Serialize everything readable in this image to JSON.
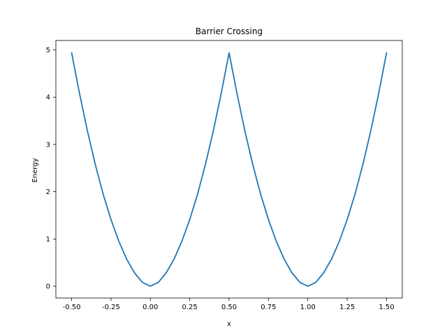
{
  "chart_data": {
    "type": "line",
    "title": "Barrier Crossing",
    "xlabel": "x",
    "ylabel": "Energy",
    "xlim": [
      -0.6,
      1.6
    ],
    "ylim": [
      -0.25,
      5.2
    ],
    "xticks": [
      -0.5,
      -0.25,
      0.0,
      0.25,
      0.5,
      0.75,
      1.0,
      1.25,
      1.5
    ],
    "xtick_labels": [
      "-0.50",
      "-0.25",
      "0.00",
      "0.25",
      "0.50",
      "0.75",
      "1.00",
      "1.25",
      "1.50"
    ],
    "yticks": [
      0,
      1,
      2,
      3,
      4,
      5
    ],
    "ytick_labels": [
      "0",
      "1",
      "2",
      "3",
      "4",
      "5"
    ],
    "grid": false,
    "legend": false,
    "series": [
      {
        "color": "#1f77b4",
        "x": [
          -0.5,
          -0.45,
          -0.4,
          -0.35,
          -0.3,
          -0.25,
          -0.2,
          -0.15,
          -0.1,
          -0.05,
          0.0,
          0.05,
          0.1,
          0.15,
          0.2,
          0.25,
          0.3,
          0.35,
          0.4,
          0.45,
          0.5,
          0.55,
          0.6,
          0.65,
          0.7,
          0.75,
          0.8,
          0.85,
          0.9,
          0.95,
          1.0,
          1.05,
          1.1,
          1.15,
          1.2,
          1.25,
          1.3,
          1.35,
          1.4,
          1.45,
          1.5
        ],
        "y": [
          4.94,
          4.08,
          3.29,
          2.58,
          1.95,
          1.41,
          0.95,
          0.57,
          0.28,
          0.08,
          0.0,
          0.08,
          0.28,
          0.57,
          0.95,
          1.41,
          1.95,
          2.58,
          3.29,
          4.08,
          4.94,
          4.08,
          3.29,
          2.58,
          1.95,
          1.41,
          0.95,
          0.57,
          0.28,
          0.08,
          0.0,
          0.08,
          0.28,
          0.57,
          0.95,
          1.41,
          1.95,
          2.58,
          3.29,
          4.08,
          4.94
        ]
      }
    ]
  }
}
